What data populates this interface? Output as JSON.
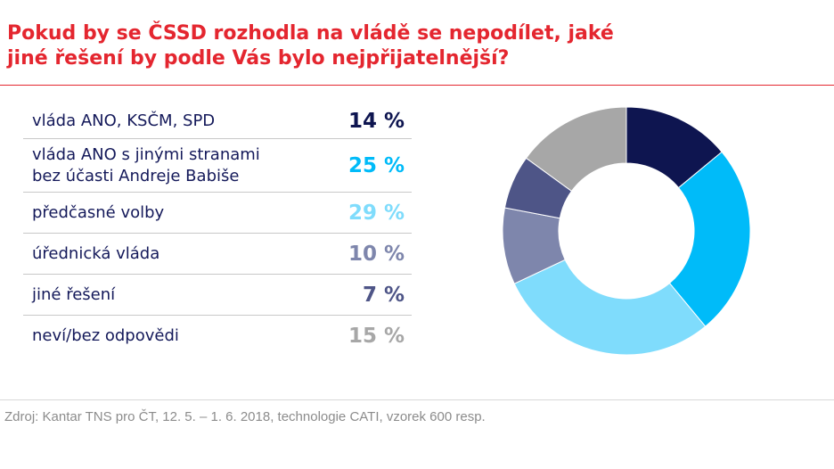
{
  "chart_data": {
    "type": "pie",
    "title_lines": [
      "Pokud by se ČSSD rozhodla na vládě se nepodílet, jaké",
      "jiné řešení by podle Vás bylo nejpřijatelnější?"
    ],
    "categories": [
      [
        "vláda ANO, KSČM, SPD"
      ],
      [
        "vláda ANO s jinými stranami",
        "bez účasti Andreje Babiše"
      ],
      [
        "předčasné volby"
      ],
      [
        "úřednická vláda"
      ],
      [
        "jiné řešení"
      ],
      [
        "neví/bez odpovědi"
      ]
    ],
    "values": [
      14,
      25,
      29,
      10,
      7,
      15
    ],
    "value_labels": [
      "14 %",
      "25 %",
      "29 %",
      "10 %",
      "7 %",
      "15 %"
    ],
    "colors": [
      "#0e1550",
      "#00bbf9",
      "#7fdcfc",
      "#7e86ac",
      "#4e5587",
      "#a7a7a7"
    ],
    "unit": "%",
    "donut": true
  },
  "source": "Zdroj: Kantar TNS pro ČT, 12. 5. – 1. 6. 2018, technologie CATI, vzorek 600 resp."
}
